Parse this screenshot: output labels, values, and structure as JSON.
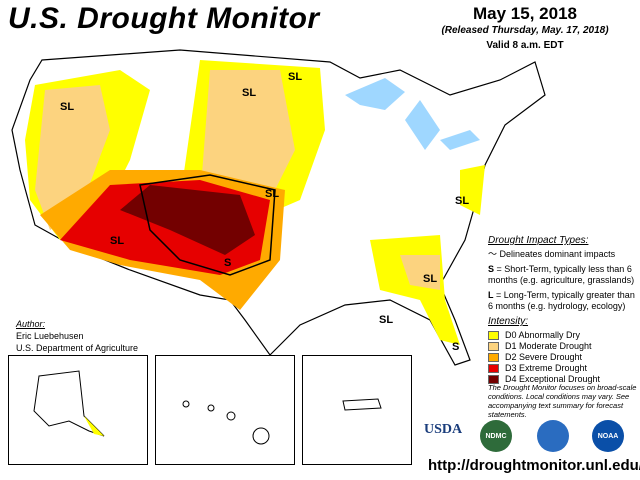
{
  "header": {
    "title": "U.S. Drought Monitor",
    "date": "May 15, 2018",
    "released": "(Released Thursday, May. 17, 2018)",
    "valid": "Valid 8 a.m. EDT"
  },
  "map_labels": [
    "SL",
    "SL",
    "SL",
    "SL",
    "SL",
    "S",
    "SL",
    "SL",
    "SL",
    "S"
  ],
  "impact": {
    "heading": "Drought Impact Types:",
    "delineates": "Delineates dominant impacts",
    "s_key": "S",
    "s_text": " = Short-Term, typically less than 6 months (e.g. agriculture, grasslands)",
    "l_key": "L",
    "l_text": " = Long-Term, typically greater than 6 months (e.g. hydrology, ecology)"
  },
  "intensity": {
    "heading": "Intensity:",
    "levels": [
      {
        "label": "D0 Abnormally Dry",
        "color": "#FFFF00"
      },
      {
        "label": "D1 Moderate Drought",
        "color": "#FCD37F"
      },
      {
        "label": "D2 Severe Drought",
        "color": "#FFAA00"
      },
      {
        "label": "D3 Extreme Drought",
        "color": "#E60000"
      },
      {
        "label": "D4 Exceptional Drought",
        "color": "#730000"
      }
    ]
  },
  "note": "The Drought Monitor focuses on broad-scale conditions. Local conditions may vary. See accompanying text summary for forecast statements.",
  "author": {
    "heading": "Author:",
    "name": "Eric Luebehusen",
    "org": "U.S. Department of Agriculture"
  },
  "logos": {
    "usda": "USDA",
    "ndmc": "NDMC",
    "noaa": "NOAA"
  },
  "url": "http://droughtmonitor.unl.edu/"
}
